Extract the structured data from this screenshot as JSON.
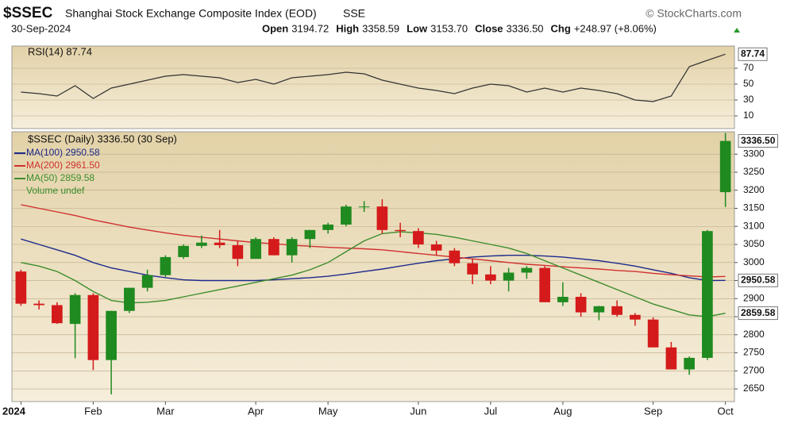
{
  "header": {
    "symbol": "$SSEC",
    "name": "Shanghai Stock Exchange Composite Index (EOD)",
    "exchange": "SSE",
    "source": "© StockCharts.com",
    "date": "30-Sep-2024",
    "quote": [
      {
        "label": "Open",
        "value": "3194.72"
      },
      {
        "label": "High",
        "value": "3358.59"
      },
      {
        "label": "Low",
        "value": "3153.70"
      },
      {
        "label": "Close",
        "value": "3336.50"
      },
      {
        "label": "Chg",
        "value": "+248.97 (+8.06%)"
      }
    ]
  },
  "chart_data": [
    {
      "type": "line",
      "title": "RSI(14) 87.74",
      "tag": "87.74",
      "color": "#333333",
      "values": [
        40,
        38,
        35,
        48,
        32,
        45,
        50,
        55,
        60,
        62,
        60,
        58,
        52,
        56,
        50,
        58,
        60,
        62,
        65,
        63,
        55,
        50,
        45,
        42,
        38,
        45,
        50,
        48,
        40,
        45,
        40,
        45,
        42,
        38,
        30,
        28,
        35,
        72,
        80,
        87.74
      ],
      "ylim": [
        -6,
        98
      ],
      "yticks": [
        10,
        30,
        50,
        70
      ],
      "grid": true
    },
    {
      "type": "candlestick",
      "title": "$SSEC (Daily) 3336.50 (30 Sep)",
      "volume_label": "Volume undef",
      "tag": "3336.50",
      "up_color": "#1f8a1f",
      "down_color": "#d41a1a",
      "categories": [
        "2024",
        null,
        null,
        null,
        "Feb",
        null,
        null,
        null,
        "Mar",
        null,
        null,
        null,
        null,
        "Apr",
        null,
        null,
        null,
        "May",
        null,
        null,
        null,
        null,
        "Jun",
        null,
        null,
        null,
        "Jul",
        null,
        null,
        null,
        "Aug",
        null,
        null,
        null,
        null,
        "Sep",
        null,
        null,
        null,
        "Oct"
      ],
      "open": [
        2975,
        2886,
        2882,
        2830,
        2910,
        2730,
        2866,
        2930,
        2965,
        3015,
        3046,
        3055,
        3048,
        3010,
        3065,
        3020,
        3065,
        3090,
        3105,
        3155,
        3155,
        3090,
        3087,
        3050,
        3033,
        2998,
        2967,
        2950,
        2972,
        2985,
        2890,
        2905,
        2862,
        2879,
        2855,
        2842,
        2765,
        2704,
        2736,
        3194.72
      ],
      "high": [
        2980,
        2895,
        2890,
        2915,
        2915,
        2866,
        2930,
        2980,
        3020,
        3050,
        3075,
        3090,
        3060,
        3070,
        3070,
        3070,
        3090,
        3110,
        3160,
        3170,
        3175,
        3110,
        3095,
        3060,
        3040,
        3010,
        2990,
        2985,
        2990,
        2990,
        2945,
        2915,
        2880,
        2895,
        2860,
        2848,
        2780,
        2740,
        3090,
        3358.59
      ],
      "low": [
        2880,
        2870,
        2830,
        2735,
        2702,
        2635,
        2860,
        2920,
        2960,
        3010,
        3040,
        3040,
        2990,
        3010,
        3020,
        3000,
        3040,
        3080,
        3100,
        3140,
        3080,
        3070,
        3040,
        3020,
        2990,
        2940,
        2940,
        2920,
        2955,
        2890,
        2880,
        2850,
        2840,
        2850,
        2825,
        2765,
        2704,
        2689,
        2730,
        3153.7
      ],
      "close": [
        2886,
        2882,
        2832,
        2910,
        2730,
        2866,
        2930,
        2965,
        3015,
        3046,
        3055,
        3048,
        3010,
        3065,
        3020,
        3065,
        3090,
        3105,
        3155,
        3155,
        3090,
        3087,
        3050,
        3033,
        2998,
        2967,
        2950,
        2972,
        2985,
        2890,
        2905,
        2862,
        2879,
        2855,
        2842,
        2765,
        2704,
        2736,
        3087,
        3336.5
      ],
      "series": [
        {
          "name": "MA(100) 2950.58",
          "color": "#1c2a8c",
          "tag": "2950.58",
          "values": [
            3065,
            3050,
            3035,
            3020,
            3000,
            2985,
            2975,
            2965,
            2958,
            2952,
            2950,
            2950,
            2950,
            2950,
            2952,
            2955,
            2958,
            2962,
            2968,
            2975,
            2982,
            2990,
            2998,
            3005,
            3010,
            3015,
            3018,
            3020,
            3020,
            3018,
            3015,
            3010,
            3005,
            2998,
            2990,
            2980,
            2970,
            2958,
            2950,
            2950.58
          ]
        },
        {
          "name": "MA(200) 2961.50",
          "color": "#d03030",
          "values": [
            3160,
            3150,
            3140,
            3130,
            3118,
            3108,
            3098,
            3090,
            3082,
            3075,
            3070,
            3065,
            3060,
            3055,
            3052,
            3048,
            3045,
            3042,
            3040,
            3038,
            3035,
            3030,
            3025,
            3020,
            3015,
            3010,
            3005,
            3000,
            2995,
            2992,
            2988,
            2985,
            2982,
            2978,
            2975,
            2970,
            2966,
            2963,
            2960,
            2961.5
          ]
        },
        {
          "name": "MA(50) 2859.58",
          "color": "#3c8c2c",
          "tag": "2859.58",
          "values": [
            3000,
            2990,
            2975,
            2950,
            2920,
            2895,
            2888,
            2890,
            2895,
            2905,
            2915,
            2925,
            2935,
            2945,
            2955,
            2965,
            2980,
            3000,
            3030,
            3060,
            3080,
            3085,
            3082,
            3078,
            3070,
            3060,
            3050,
            3040,
            3025,
            3005,
            2985,
            2965,
            2945,
            2925,
            2905,
            2885,
            2870,
            2855,
            2850,
            2859.58
          ]
        }
      ],
      "ylim": [
        2615,
        3362
      ],
      "yticks": [
        2650,
        2700,
        2750,
        2800,
        2850,
        2900,
        2950,
        3000,
        3050,
        3100,
        3150,
        3200,
        3250,
        3300
      ],
      "grid": true
    }
  ]
}
